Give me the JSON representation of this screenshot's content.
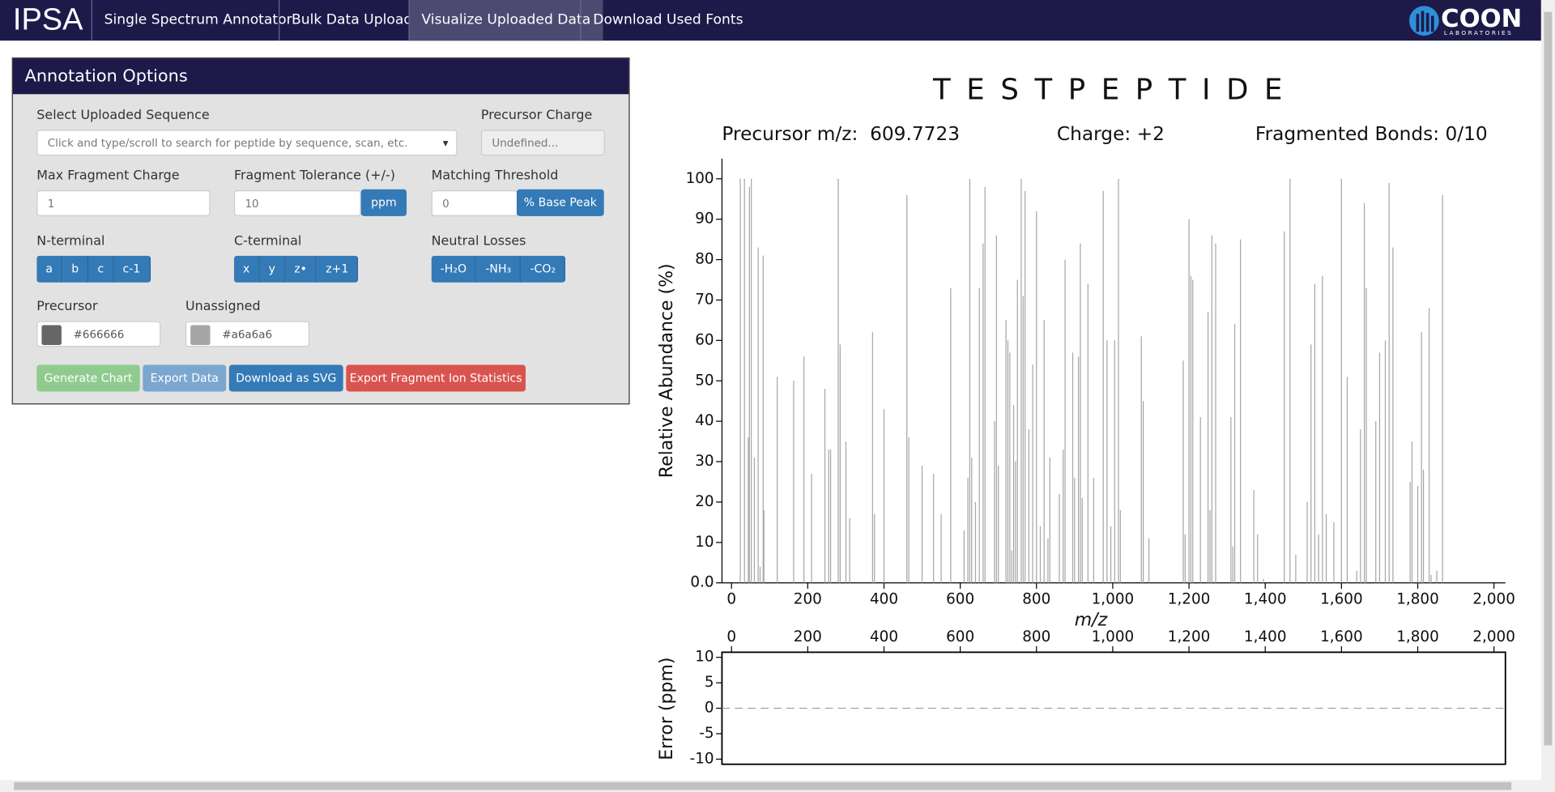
{
  "nav": {
    "brand": "IPSA",
    "links": [
      "Single Spectrum Annotator",
      "Bulk Data Upload",
      "Visualize Uploaded Data",
      "Download Used Fonts"
    ],
    "logo": "COON",
    "logo_sub": "LABORATORIES"
  },
  "panel": {
    "title": "Annotation Options",
    "sequence": {
      "label": "Select Uploaded Sequence",
      "placeholder": "Click and type/scroll to search for peptide by sequence, scan, etc."
    },
    "precursor_charge": {
      "label": "Precursor Charge",
      "placeholder": "Undefined..."
    },
    "max_fragment_charge": {
      "label": "Max Fragment Charge",
      "value": "1"
    },
    "fragment_tolerance": {
      "label": "Fragment Tolerance (+/-)",
      "value": "10",
      "unit": "ppm"
    },
    "matching_threshold": {
      "label": "Matching Threshold",
      "value": "0",
      "unit": "% Base Peak"
    },
    "n_terminal": {
      "label": "N-terminal",
      "buttons": [
        "a",
        "b",
        "c",
        "c-1"
      ]
    },
    "c_terminal": {
      "label": "C-terminal",
      "buttons": [
        "x",
        "y",
        "z•",
        "z+1"
      ]
    },
    "neutral_losses": {
      "label": "Neutral Losses",
      "buttons": [
        "-H₂O",
        "-NH₃",
        "-CO₂"
      ]
    },
    "precursor_color": {
      "label": "Precursor",
      "value": "#666666"
    },
    "unassigned_color": {
      "label": "Unassigned",
      "value": "#a6a6a6"
    },
    "actions": [
      "Generate Chart",
      "Export Data",
      "Download as SVG",
      "Export Fragment Ion Statistics"
    ]
  },
  "chart_data": [
    {
      "type": "bar",
      "title": "TESTPEPTIDE",
      "subtitles": [
        "Precursor m/z:  609.7723",
        "Charge: +2",
        "Fragmented Bonds: 0/10"
      ],
      "x_label": "m/z",
      "y_label": "Relative Abundance (%)",
      "color": "#a6a6a6",
      "x": [
        23,
        34,
        44,
        47,
        52,
        60,
        70,
        75,
        83,
        85,
        120,
        163,
        190,
        210,
        245,
        255,
        260,
        280,
        285,
        300,
        310,
        370,
        375,
        400,
        460,
        465,
        500,
        530,
        550,
        575,
        610,
        620,
        625,
        630,
        640,
        650,
        660,
        665,
        690,
        695,
        700,
        720,
        725,
        730,
        735,
        740,
        745,
        750,
        760,
        765,
        770,
        780,
        790,
        800,
        810,
        820,
        830,
        835,
        860,
        870,
        875,
        895,
        900,
        910,
        915,
        920,
        935,
        950,
        975,
        985,
        995,
        1005,
        1015,
        1020,
        1075,
        1080,
        1095,
        1185,
        1190,
        1200,
        1205,
        1210,
        1230,
        1250,
        1255,
        1260,
        1270,
        1310,
        1315,
        1320,
        1335,
        1370,
        1380,
        1395,
        1450,
        1465,
        1480,
        1510,
        1520,
        1530,
        1540,
        1550,
        1560,
        1580,
        1600,
        1615,
        1640,
        1650,
        1660,
        1665,
        1690,
        1700,
        1715,
        1725,
        1735,
        1780,
        1785,
        1800,
        1810,
        1815,
        1830,
        1835,
        1850,
        1865
      ],
      "values": [
        100,
        100,
        36,
        98,
        100,
        31,
        83,
        4,
        81,
        18,
        51,
        50,
        56,
        27,
        48,
        33,
        33,
        100,
        59,
        35,
        16,
        62,
        17,
        43,
        96,
        36,
        29,
        27,
        17,
        73,
        13,
        26,
        100,
        31,
        20,
        73,
        84,
        98,
        40,
        86,
        29,
        65,
        60,
        57,
        8,
        44,
        30,
        75,
        100,
        71,
        97,
        38,
        54,
        92,
        14,
        65,
        11,
        31,
        22,
        33,
        80,
        57,
        26,
        56,
        84,
        21,
        74,
        26,
        97,
        60,
        14,
        60,
        100,
        18,
        61,
        45,
        11,
        55,
        12,
        90,
        76,
        75,
        41,
        67,
        18,
        86,
        84,
        41,
        9,
        64,
        85,
        23,
        12,
        1,
        87,
        100,
        7,
        20,
        59,
        74,
        12,
        76,
        17,
        15,
        100,
        51,
        3,
        38,
        94,
        73,
        40,
        57,
        60,
        99,
        83,
        25,
        35,
        24,
        62,
        28,
        68,
        2,
        3,
        96
      ],
      "xlim": [
        -25,
        2030
      ],
      "xticks": [
        0,
        200,
        400,
        600,
        800,
        {
          "value": 1000,
          "label": "1,000"
        },
        {
          "value": 1200,
          "label": "1,200"
        },
        {
          "value": 1400,
          "label": "1,400"
        },
        {
          "value": 1600,
          "label": "1,600"
        },
        {
          "value": 1800,
          "label": "1,800"
        },
        {
          "value": 2000,
          "label": "2,000"
        }
      ],
      "ylim": [
        0,
        105
      ],
      "yticks": [
        {
          "value": 0,
          "label": "0.0"
        },
        10,
        20,
        30,
        40,
        50,
        60,
        70,
        80,
        90,
        100
      ]
    },
    {
      "type": "scatter",
      "y_label": "Error (ppm)",
      "zero_line": true,
      "xlim": [
        -25,
        2030
      ],
      "xticks": [
        0,
        200,
        400,
        600,
        800,
        {
          "value": 1000,
          "label": "1,000"
        },
        {
          "value": 1200,
          "label": "1,200"
        },
        {
          "value": 1400,
          "label": "1,400"
        },
        {
          "value": 1600,
          "label": "1,600"
        },
        {
          "value": 1800,
          "label": "1,800"
        },
        {
          "value": 2000,
          "label": "2,000"
        }
      ],
      "ylim": [
        -11,
        11
      ],
      "yticks": [
        10,
        5,
        0,
        -5,
        -10
      ]
    }
  ]
}
